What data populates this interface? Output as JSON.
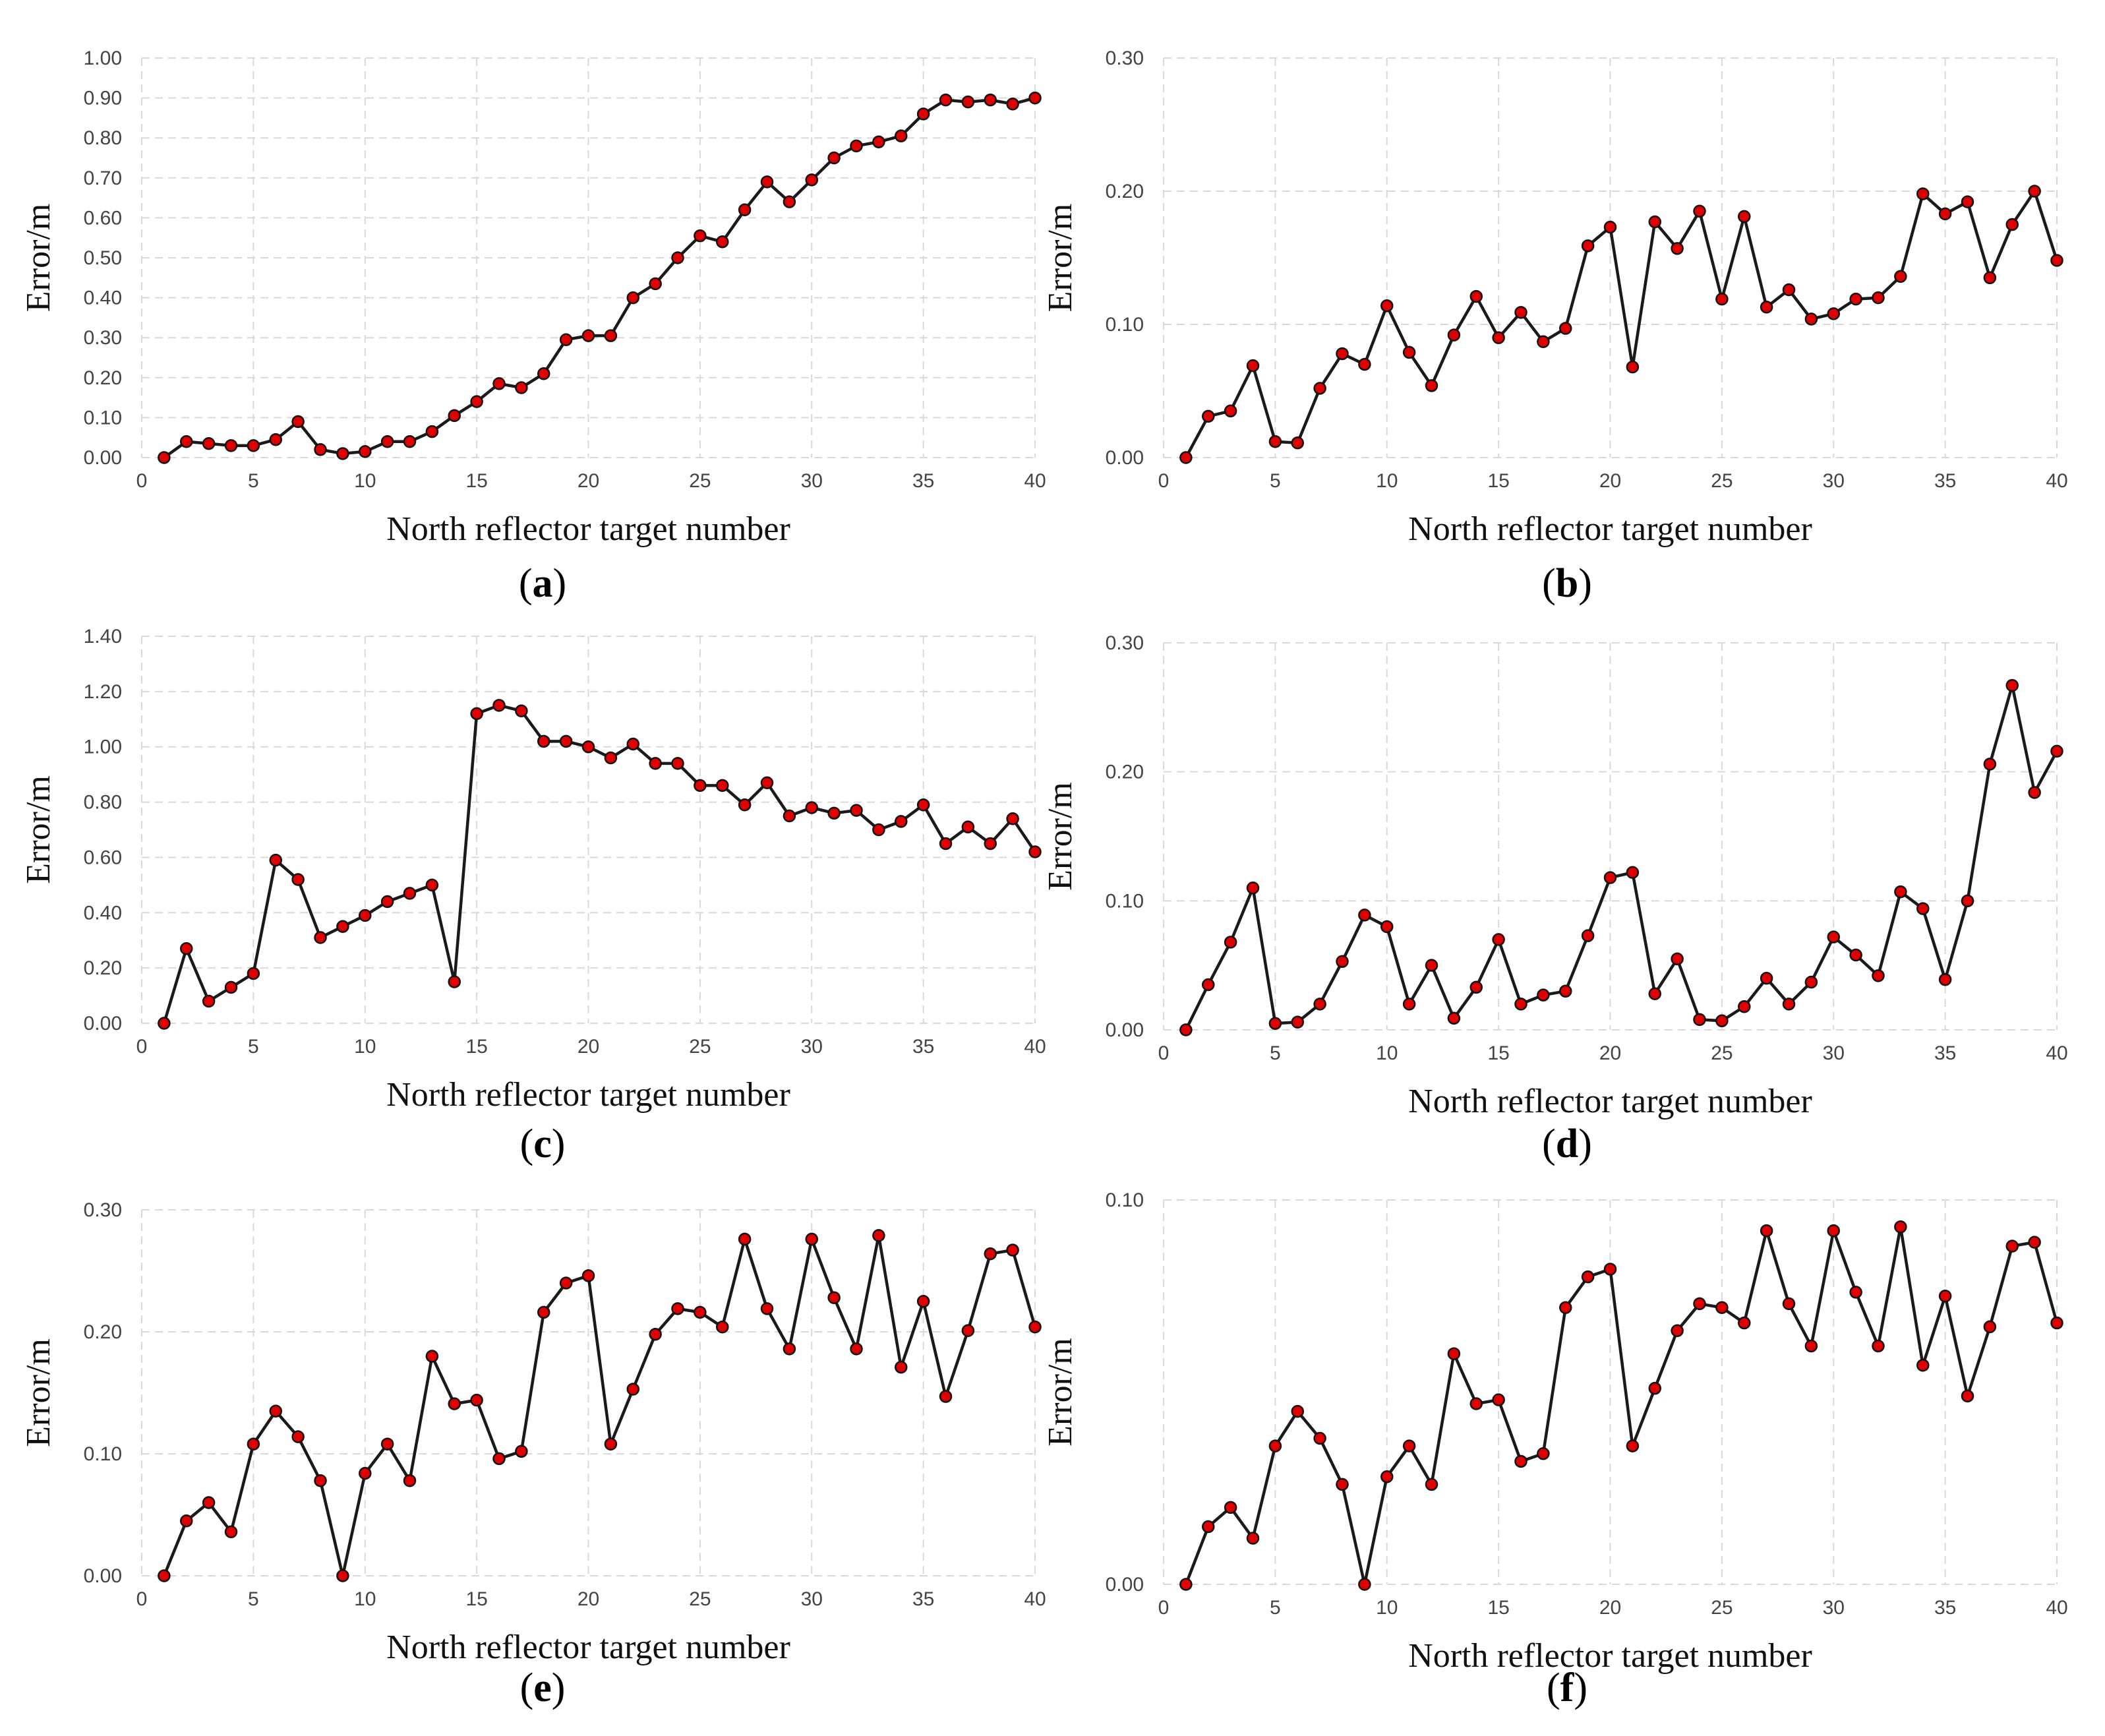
{
  "figure": {
    "series_color": "#1a1a1a",
    "marker_color": "#e00000",
    "grid_color": "#d9d9d9"
  },
  "chart_data": [
    {
      "panel": "a",
      "label_open": "(",
      "label_text": "a",
      "label_close": ")",
      "type": "line",
      "xlabel": "North reflector target number",
      "ylabel": "Error/m",
      "xlim": [
        0,
        40
      ],
      "ylim": [
        0,
        1.0
      ],
      "xticks": [
        "0",
        "5",
        "10",
        "15",
        "20",
        "25",
        "30",
        "35",
        "40"
      ],
      "yticks": [
        "0.00",
        "0.10",
        "0.20",
        "0.30",
        "0.40",
        "0.50",
        "0.60",
        "0.70",
        "0.80",
        "0.90",
        "1.00"
      ],
      "x": [
        1,
        2,
        3,
        4,
        5,
        6,
        7,
        8,
        9,
        10,
        11,
        12,
        13,
        14,
        15,
        16,
        17,
        18,
        19,
        20,
        21,
        22,
        23,
        24,
        25,
        26,
        27,
        28,
        29,
        30,
        31,
        32,
        33,
        34,
        35,
        36,
        37,
        38,
        39,
        40
      ],
      "values": [
        0.0,
        0.04,
        0.035,
        0.03,
        0.03,
        0.045,
        0.09,
        0.02,
        0.01,
        0.015,
        0.04,
        0.04,
        0.065,
        0.105,
        0.14,
        0.185,
        0.175,
        0.21,
        0.295,
        0.305,
        0.305,
        0.4,
        0.435,
        0.5,
        0.555,
        0.54,
        0.62,
        0.69,
        0.64,
        0.695,
        0.75,
        0.78,
        0.79,
        0.805,
        0.86,
        0.895,
        0.89,
        0.895,
        0.885,
        0.9
      ]
    },
    {
      "panel": "b",
      "label_open": "(",
      "label_text": "b",
      "label_close": ")",
      "type": "line",
      "xlabel": "North reflector target number",
      "ylabel": "Error/m",
      "xlim": [
        0,
        40
      ],
      "ylim": [
        0,
        0.3
      ],
      "xticks": [
        "0",
        "5",
        "10",
        "15",
        "20",
        "25",
        "30",
        "35",
        "40"
      ],
      "yticks": [
        "0.00",
        "0.10",
        "0.20",
        "0.30"
      ],
      "x": [
        1,
        2,
        3,
        4,
        5,
        6,
        7,
        8,
        9,
        10,
        11,
        12,
        13,
        14,
        15,
        16,
        17,
        18,
        19,
        20,
        21,
        22,
        23,
        24,
        25,
        26,
        27,
        28,
        29,
        30,
        31,
        32,
        33,
        34,
        35,
        36,
        37,
        38,
        39,
        40
      ],
      "values": [
        0.0,
        0.031,
        0.035,
        0.069,
        0.012,
        0.011,
        0.052,
        0.078,
        0.07,
        0.114,
        0.079,
        0.054,
        0.092,
        0.121,
        0.09,
        0.109,
        0.087,
        0.097,
        0.159,
        0.173,
        0.068,
        0.177,
        0.157,
        0.185,
        0.119,
        0.181,
        0.113,
        0.126,
        0.104,
        0.108,
        0.119,
        0.12,
        0.136,
        0.198,
        0.183,
        0.192,
        0.135,
        0.175,
        0.2,
        0.148
      ]
    },
    {
      "panel": "c",
      "label_open": "(",
      "label_text": "c",
      "label_close": ")",
      "type": "line",
      "xlabel": "North reflector target number",
      "ylabel": "Error/m",
      "xlim": [
        0,
        40
      ],
      "ylim": [
        0,
        1.4
      ],
      "xticks": [
        "0",
        "5",
        "10",
        "15",
        "20",
        "25",
        "30",
        "35",
        "40"
      ],
      "yticks": [
        "0.00",
        "0.20",
        "0.40",
        "0.60",
        "0.80",
        "1.00",
        "1.20",
        "1.40"
      ],
      "x": [
        1,
        2,
        3,
        4,
        5,
        6,
        7,
        8,
        9,
        10,
        11,
        12,
        13,
        14,
        15,
        16,
        17,
        18,
        19,
        20,
        21,
        22,
        23,
        24,
        25,
        26,
        27,
        28,
        29,
        30,
        31,
        32,
        33,
        34,
        35,
        36,
        37,
        38,
        39,
        40
      ],
      "values": [
        0.0,
        0.27,
        0.08,
        0.13,
        0.18,
        0.59,
        0.52,
        0.31,
        0.35,
        0.39,
        0.44,
        0.47,
        0.5,
        0.15,
        1.12,
        1.15,
        1.13,
        1.02,
        1.02,
        1.0,
        0.96,
        1.01,
        0.94,
        0.94,
        0.86,
        0.86,
        0.79,
        0.87,
        0.75,
        0.78,
        0.76,
        0.77,
        0.7,
        0.73,
        0.79,
        0.65,
        0.71,
        0.65,
        0.74,
        0.62
      ]
    },
    {
      "panel": "d",
      "label_open": "(",
      "label_text": "d",
      "label_close": ")",
      "type": "line",
      "xlabel": "North reflector target number",
      "ylabel": "Error/m",
      "xlim": [
        0,
        40
      ],
      "ylim": [
        0,
        0.3
      ],
      "xticks": [
        "0",
        "5",
        "10",
        "15",
        "20",
        "25",
        "30",
        "35",
        "40"
      ],
      "yticks": [
        "0.00",
        "0.10",
        "0.20",
        "0.30"
      ],
      "x": [
        1,
        2,
        3,
        4,
        5,
        6,
        7,
        8,
        9,
        10,
        11,
        12,
        13,
        14,
        15,
        16,
        17,
        18,
        19,
        20,
        21,
        22,
        23,
        24,
        25,
        26,
        27,
        28,
        29,
        30,
        31,
        32,
        33,
        34,
        35,
        36,
        37,
        38,
        39,
        40
      ],
      "values": [
        0.0,
        0.035,
        0.068,
        0.11,
        0.005,
        0.006,
        0.02,
        0.053,
        0.089,
        0.08,
        0.02,
        0.05,
        0.009,
        0.033,
        0.07,
        0.02,
        0.027,
        0.03,
        0.073,
        0.118,
        0.122,
        0.028,
        0.055,
        0.008,
        0.007,
        0.018,
        0.04,
        0.02,
        0.037,
        0.072,
        0.058,
        0.042,
        0.107,
        0.094,
        0.039,
        0.1,
        0.206,
        0.267,
        0.184,
        0.216
      ]
    },
    {
      "panel": "e",
      "label_open": "(",
      "label_text": "e",
      "label_close": ")",
      "type": "line",
      "xlabel": "North reflector target number",
      "ylabel": "Error/m",
      "xlim": [
        0,
        40
      ],
      "ylim": [
        0,
        0.3
      ],
      "xticks": [
        "0",
        "5",
        "10",
        "15",
        "20",
        "25",
        "30",
        "35",
        "40"
      ],
      "yticks": [
        "0.00",
        "0.10",
        "0.20",
        "0.30"
      ],
      "x": [
        1,
        2,
        3,
        4,
        5,
        6,
        7,
        8,
        9,
        10,
        11,
        12,
        13,
        14,
        15,
        16,
        17,
        18,
        19,
        20,
        21,
        22,
        23,
        24,
        25,
        26,
        27,
        28,
        29,
        30,
        31,
        32,
        33,
        34,
        35,
        36,
        37,
        38,
        39,
        40
      ],
      "values": [
        0.0,
        0.045,
        0.06,
        0.036,
        0.108,
        0.135,
        0.114,
        0.078,
        0.0,
        0.084,
        0.108,
        0.078,
        0.18,
        0.141,
        0.144,
        0.096,
        0.102,
        0.216,
        0.24,
        0.246,
        0.108,
        0.153,
        0.198,
        0.219,
        0.216,
        0.204,
        0.276,
        0.219,
        0.186,
        0.276,
        0.228,
        0.186,
        0.279,
        0.171,
        0.225,
        0.147,
        0.201,
        0.264,
        0.267,
        0.204
      ]
    },
    {
      "panel": "f",
      "label_open": "(",
      "label_text": "f",
      "label_close": ")",
      "type": "line",
      "xlabel": "North reflector target number",
      "ylabel": "Error/m",
      "xlim": [
        0,
        40
      ],
      "ylim": [
        0,
        0.1
      ],
      "xticks": [
        "0",
        "5",
        "10",
        "15",
        "20",
        "25",
        "30",
        "35",
        "40"
      ],
      "yticks": [
        "0.00",
        "0.10"
      ],
      "x": [
        1,
        2,
        3,
        4,
        5,
        6,
        7,
        8,
        9,
        10,
        11,
        12,
        13,
        14,
        15,
        16,
        17,
        18,
        19,
        20,
        21,
        22,
        23,
        24,
        25,
        26,
        27,
        28,
        29,
        30,
        31,
        32,
        33,
        34,
        35,
        36,
        37,
        38,
        39,
        40
      ],
      "values": [
        0.0,
        0.015,
        0.02,
        0.012,
        0.036,
        0.045,
        0.038,
        0.026,
        0.0,
        0.028,
        0.036,
        0.026,
        0.06,
        0.047,
        0.048,
        0.032,
        0.034,
        0.072,
        0.08,
        0.082,
        0.036,
        0.051,
        0.066,
        0.073,
        0.072,
        0.068,
        0.092,
        0.073,
        0.062,
        0.092,
        0.076,
        0.062,
        0.093,
        0.057,
        0.075,
        0.049,
        0.067,
        0.088,
        0.089,
        0.068
      ]
    }
  ]
}
